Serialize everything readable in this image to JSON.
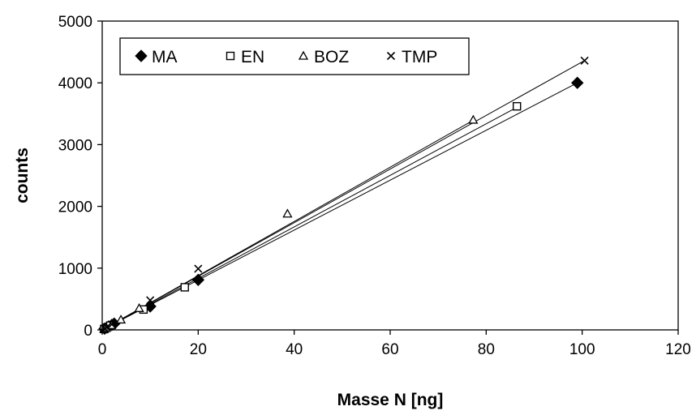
{
  "chart_data": {
    "type": "scatter",
    "xlabel": "Masse N [ng]",
    "ylabel": "counts",
    "xlim": [
      0,
      120
    ],
    "ylim": [
      0,
      5000
    ],
    "xticks": [
      0,
      20,
      40,
      60,
      80,
      100,
      120
    ],
    "yticks": [
      0,
      1000,
      2000,
      3000,
      4000,
      5000
    ],
    "grid": false,
    "legend_position": "top-left",
    "series": [
      {
        "name": "MA",
        "marker": "diamond-filled",
        "points": [
          [
            0.5,
            20
          ],
          [
            1,
            40
          ],
          [
            2,
            80
          ],
          [
            2.5,
            100
          ],
          [
            10,
            380
          ],
          [
            20,
            810
          ],
          [
            99,
            4000
          ]
        ],
        "fit": {
          "slope": 40.4,
          "intercept": 0
        }
      },
      {
        "name": "EN",
        "marker": "square-open",
        "points": [
          [
            0.4,
            15
          ],
          [
            0.9,
            35
          ],
          [
            1.7,
            70
          ],
          [
            8.6,
            330
          ],
          [
            17.2,
            690
          ],
          [
            86.4,
            3620
          ]
        ],
        "fit": {
          "slope": 41.7,
          "intercept": 0
        }
      },
      {
        "name": "BOZ",
        "marker": "triangle-open",
        "points": [
          [
            0.4,
            15
          ],
          [
            0.8,
            30
          ],
          [
            1.9,
            75
          ],
          [
            3.9,
            165
          ],
          [
            7.7,
            350
          ],
          [
            38.6,
            1880
          ],
          [
            77.3,
            3400
          ]
        ],
        "fit": {
          "slope": 43.9,
          "intercept": 0
        }
      },
      {
        "name": "TMP",
        "marker": "cross",
        "points": [
          [
            0.5,
            20
          ],
          [
            1,
            45
          ],
          [
            2,
            90
          ],
          [
            10,
            480
          ],
          [
            20,
            990
          ],
          [
            100.5,
            4360
          ]
        ],
        "fit": {
          "slope": 43.4,
          "intercept": 0
        }
      }
    ]
  }
}
